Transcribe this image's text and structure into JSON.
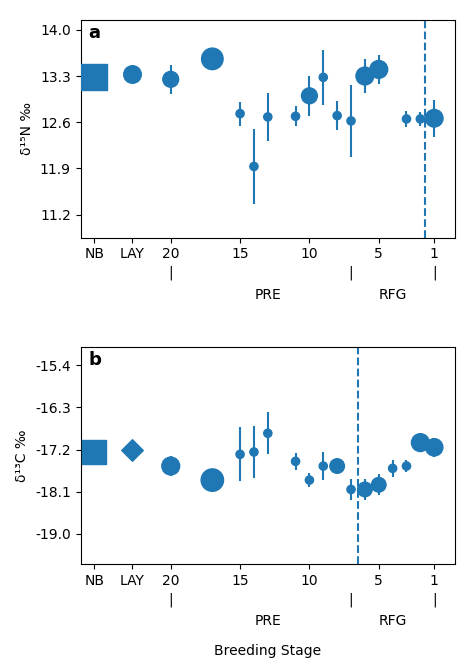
{
  "chart_data": [
    {
      "type": "scatter",
      "panel_label": "a",
      "y_label": "δ¹⁵N ‰",
      "ylim": [
        10.85,
        14.15
      ],
      "yticks": [
        11.2,
        11.9,
        12.6,
        13.3,
        14.0
      ],
      "xlim": [
        26.5,
        -0.5
      ],
      "xticks": [
        20,
        15,
        10,
        5,
        1,
        {
          "value": 22.8,
          "label": "LAY"
        },
        {
          "value": 25.5,
          "label": "NB"
        }
      ],
      "vlines": [
        1.7
      ],
      "series": [
        {
          "marker": "o",
          "x": [
            20,
            17,
            15,
            14,
            13,
            11,
            10,
            9,
            8,
            7,
            6,
            5,
            3,
            2,
            1
          ],
          "values": [
            13.25,
            13.56,
            12.73,
            11.93,
            12.68,
            12.69,
            13.0,
            13.28,
            12.7,
            12.62,
            13.3,
            13.4,
            12.65,
            12.65,
            12.66
          ],
          "yerr": [
            0.22,
            0.0,
            0.18,
            0.57,
            0.36,
            0.15,
            0.3,
            0.42,
            0.22,
            0.55,
            0.26,
            0.22,
            0.12,
            0.1,
            0.28
          ],
          "sizes": [
            130,
            240,
            35,
            35,
            35,
            35,
            130,
            35,
            35,
            35,
            165,
            165,
            35,
            35,
            160
          ]
        },
        {
          "marker": "o",
          "x": [
            22.8
          ],
          "values": [
            13.33
          ],
          "yerr": [
            0.1
          ],
          "sizes": [
            160
          ]
        },
        {
          "marker": "s",
          "x": [
            25.5
          ],
          "values": [
            13.28
          ],
          "sizes": [
            340
          ]
        }
      ],
      "stage_marks": {
        "text": "|",
        "x": [
          20,
          7,
          1
        ]
      },
      "stage_labels": [
        {
          "text": "PRE",
          "x": 13
        },
        {
          "text": "RFG",
          "x": 4
        }
      ]
    },
    {
      "type": "scatter",
      "panel_label": "b",
      "y_label": "δ¹³C ‰",
      "x_label": "Breeding Stage",
      "ylim": [
        -19.65,
        -15.0
      ],
      "yticks": [
        -19.0,
        -18.1,
        -17.2,
        -16.3,
        -15.4
      ],
      "xlim": [
        26.5,
        -0.5
      ],
      "xticks": [
        20,
        15,
        10,
        5,
        1,
        {
          "value": 22.8,
          "label": "LAY"
        },
        {
          "value": 25.5,
          "label": "NB"
        }
      ],
      "vlines": [
        6.5
      ],
      "series": [
        {
          "marker": "o",
          "x": [
            20,
            17,
            15,
            14,
            13,
            11,
            10,
            9,
            8,
            7,
            6,
            5,
            4,
            3,
            2,
            1
          ],
          "values": [
            -17.55,
            -17.85,
            -17.3,
            -17.25,
            -16.85,
            -17.45,
            -17.85,
            -17.55,
            -17.55,
            -18.05,
            -18.05,
            -17.95,
            -17.6,
            -17.55,
            -17.05,
            -17.15
          ],
          "yerr": [
            0.22,
            0.2,
            0.58,
            0.55,
            0.45,
            0.18,
            0.15,
            0.3,
            0.18,
            0.22,
            0.22,
            0.22,
            0.18,
            0.12,
            0.18,
            0.2
          ],
          "sizes": [
            165,
            260,
            35,
            35,
            35,
            35,
            35,
            35,
            110,
            35,
            110,
            110,
            35,
            35,
            165,
            155
          ]
        },
        {
          "marker": "D",
          "x": [
            22.8
          ],
          "values": [
            -17.2
          ],
          "yerr": [
            0.0
          ],
          "sizes": [
            120
          ]
        },
        {
          "marker": "s",
          "x": [
            25.5
          ],
          "values": [
            -17.25
          ],
          "sizes": [
            300
          ]
        }
      ],
      "stage_marks": {
        "text": "|",
        "x": [
          20,
          7,
          1
        ]
      },
      "stage_labels": [
        {
          "text": "PRE",
          "x": 13
        },
        {
          "text": "RFG",
          "x": 4
        }
      ]
    }
  ]
}
